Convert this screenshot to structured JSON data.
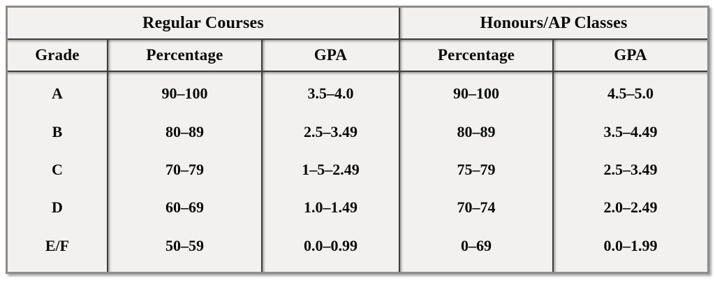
{
  "chart_data": {
    "type": "table",
    "group_headers": [
      "Regular Courses",
      "Honours/AP Classes"
    ],
    "columns": [
      "Grade",
      "Percentage",
      "GPA",
      "Percentage",
      "GPA"
    ],
    "rows": [
      [
        "A",
        "90–100",
        "3.5–4.0",
        "90–100",
        "4.5–5.0"
      ],
      [
        "B",
        "80–89",
        "2.5–3.49",
        "80–89",
        "3.5–4.49"
      ],
      [
        "C",
        "70–79",
        "1–5–2.49",
        "75–79",
        "2.5–3.49"
      ],
      [
        "D",
        "60–69",
        "1.0–1.49",
        "70–74",
        "2.0–2.49"
      ],
      [
        "E/F",
        "50–59",
        "0.0–0.99",
        "0–69",
        "0.0–1.99"
      ]
    ],
    "layout": {
      "grid": "vertical lines between all columns; horizontal lines only below the two header rows",
      "legend_position": "none"
    }
  },
  "colors": {
    "cell_background": "#f2f1ef",
    "inner_grid_line": "#3e3e3e",
    "outer_border": "#8c8c8c",
    "text": "#0a0a0a",
    "page_background": "#ffffff"
  }
}
